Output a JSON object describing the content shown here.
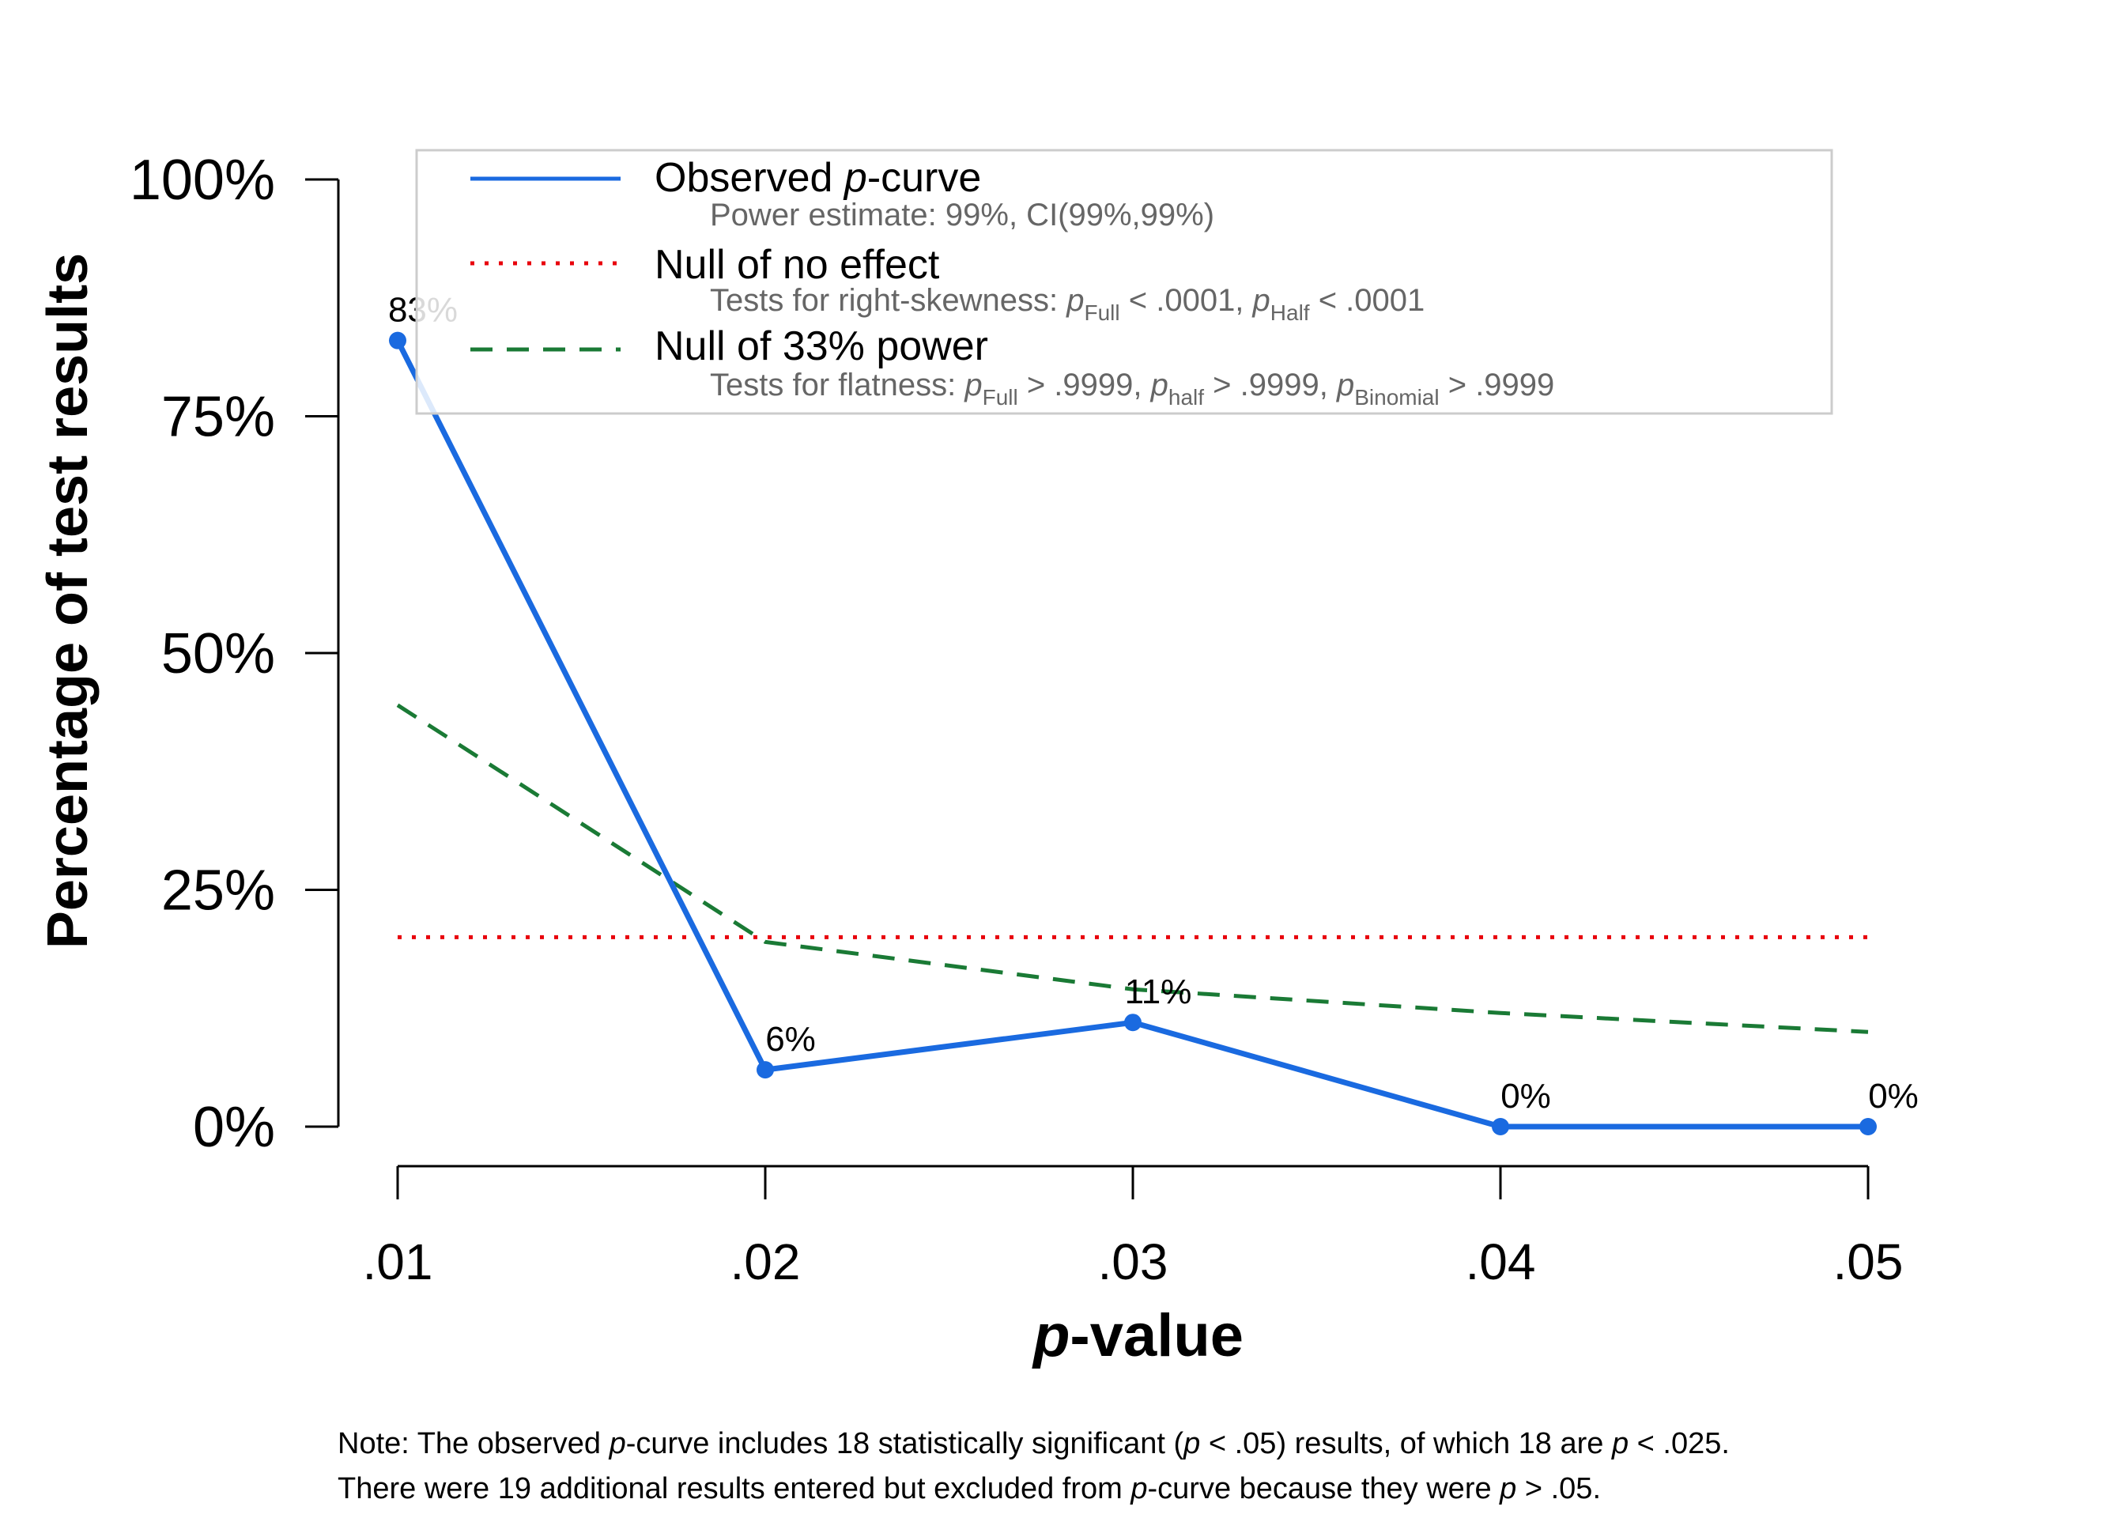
{
  "chart_data": {
    "type": "line",
    "x": [
      0.01,
      0.02,
      0.03,
      0.04,
      0.05
    ],
    "xtick_labels": [
      ".01",
      ".02",
      ".03",
      ".04",
      ".05"
    ],
    "ytick_labels": [
      "0%",
      "25%",
      "50%",
      "75%",
      "100%"
    ],
    "ylim": [
      0,
      100
    ],
    "xlabel_italic": "p",
    "xlabel_rest": "-value",
    "ylabel": "Percentage of test results",
    "grid": false,
    "legend_position": "top",
    "series": [
      {
        "key": "observed",
        "values": [
          83,
          6,
          11,
          0,
          0
        ],
        "data_labels": [
          "83%",
          "6%",
          "11%",
          "0%",
          "0%"
        ],
        "color": "#1a6ae0",
        "style": "solid"
      },
      {
        "key": "null_no_effect",
        "values": [
          20,
          20,
          20,
          20,
          20
        ],
        "color": "#e8000b",
        "style": "dotted"
      },
      {
        "key": "null_33_power",
        "values": [
          44.5,
          19.5,
          14.5,
          12,
          10
        ],
        "color": "#1a7a35",
        "style": "dashed"
      }
    ],
    "legend": {
      "observed": {
        "title_prefix": "Observed ",
        "title_italic": "p",
        "title_suffix": "-curve",
        "sub": "Power estimate: 99%, CI(99%,99%)"
      },
      "null_no_effect": {
        "title": "Null of no effect",
        "sub_prefix": "Tests for right-skewness: ",
        "p1": "p",
        "p1_sub": "Full",
        "p1_val": " < .0001,  ",
        "p2": "p",
        "p2_sub": "Half",
        "p2_val": " < .0001"
      },
      "null_33_power": {
        "title": "Null of 33% power",
        "sub_prefix": "Tests for flatness: ",
        "p1": "p",
        "p1_sub": "Full",
        "p1_val": " > .9999,  ",
        "p2": "p",
        "p2_sub": "half",
        "p2_val": " > .9999,  ",
        "p3": "p",
        "p3_sub": "Binomial",
        "p3_val": " > .9999"
      }
    }
  },
  "note": {
    "line1_a": "Note: The observed ",
    "line1_p1": "p",
    "line1_b": "-curve includes 18 statistically significant (",
    "line1_p2": "p",
    "line1_c": " < .05) results, of which 18 are ",
    "line1_p3": "p",
    "line1_d": " < .025.",
    "line2_a": "There were 19 additional results entered but excluded from ",
    "line2_p1": "p",
    "line2_b": "-curve because they were ",
    "line2_p2": "p",
    "line2_c": " > .05."
  }
}
